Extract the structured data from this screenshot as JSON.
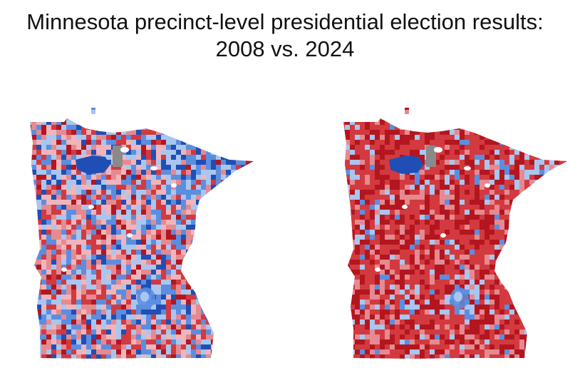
{
  "title": {
    "line1": "Minnesota precinct-level presidential election results:",
    "line2": "2008 vs. 2024"
  },
  "maps": [
    {
      "year": "2008",
      "region": "Minnesota",
      "dominant_lean": "mixed",
      "blue_share": 0.42,
      "seed": 11
    },
    {
      "year": "2024",
      "region": "Minnesota",
      "dominant_lean": "republican",
      "blue_share": 0.12,
      "seed": 37
    }
  ],
  "palette": {
    "dark_red": "#b3161f",
    "red": "#d23a3f",
    "light_red": "#e58a91",
    "pink": "#f0b5bb",
    "light_blue": "#a9c6f0",
    "blue": "#5c8ee0",
    "dark_blue": "#1f4fb5",
    "gray": "#8a8a8a",
    "water": "#ffffff"
  }
}
